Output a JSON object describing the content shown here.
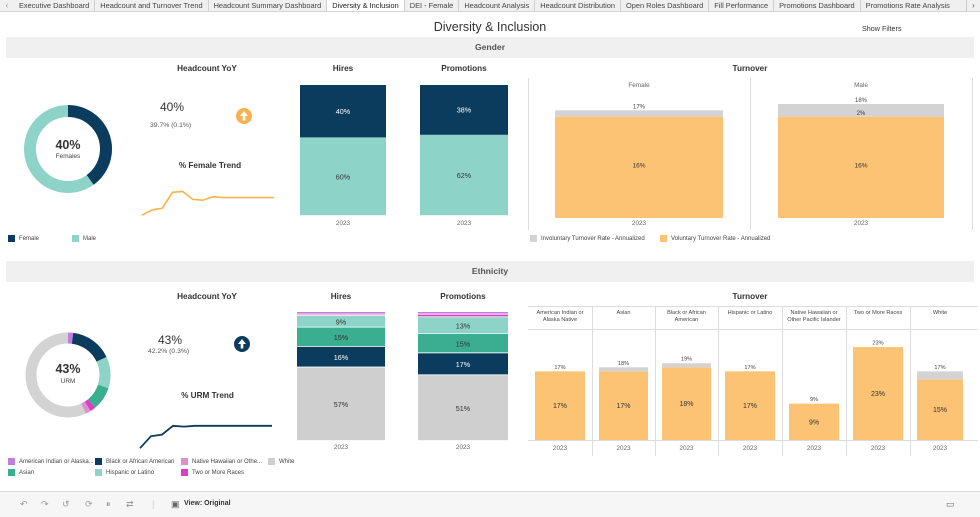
{
  "tabs": [
    "Executive Dashboard",
    "Headcount and Turnover Trend",
    "Headcount Summary Dashboard",
    "Diversity & Inclusion",
    "DEI - Female",
    "Headcount Analysis",
    "Headcount Distribution",
    "Open Roles Dashboard",
    "Fill Performance",
    "Promotions Dashboard",
    "Promotions Rate Analysis"
  ],
  "active_tab": "Diversity & Inclusion",
  "title": "Diversity & Inclusion",
  "show_filters": "Show Filters",
  "gender": {
    "section": "Gender",
    "donut_value": "40%",
    "donut_label": "Females",
    "headcount_yoy_label": "Headcount YoY",
    "yoy_value": "40%",
    "yoy_sub": "39.7%  (0.1%)",
    "trend_label": "% Female Trend",
    "hires_label": "Promotions",
    "hires_title": "Hires",
    "promotions_title": "Promotions",
    "turnover_title": "Turnover",
    "female_label": "Female",
    "male_label": "Male",
    "year": "2023",
    "legend": [
      {
        "label": "Female",
        "color": "#0b3c5d"
      },
      {
        "label": "Male",
        "color": "#8dd3c7"
      }
    ],
    "turnover_legend": [
      {
        "label": "Involuntary Turnover Rate - Annualized",
        "color": "#d3d3d3"
      },
      {
        "label": "Voluntary Turnover Rate - Annualized",
        "color": "#fbc373"
      }
    ]
  },
  "ethnicity": {
    "section": "Ethnicity",
    "donut_value": "43%",
    "donut_label": "URM",
    "headcount_yoy_label": "Headcount YoY",
    "yoy_value": "43%",
    "yoy_sub": "42.2%  (0.3%)",
    "trend_label": "% URM Trend",
    "hires_title": "Hires",
    "promotions_title": "Promotions",
    "turnover_title": "Turnover",
    "year": "2023",
    "legend": [
      {
        "label": "American Indian or Alaska...",
        "color": "#c07ee0"
      },
      {
        "label": "Black or African American",
        "color": "#0b3c5d"
      },
      {
        "label": "Native Hawaiian or Othe...",
        "color": "#e08ed0"
      },
      {
        "label": "White",
        "color": "#cfcfcf"
      },
      {
        "label": "Asian",
        "color": "#3aae8f"
      },
      {
        "label": "Hispanic or Latino",
        "color": "#8dd3c7"
      },
      {
        "label": "Two or More Races",
        "color": "#d93fc4"
      }
    ],
    "turnover_groups": [
      {
        "label1": "American Indian or",
        "label2": "Alaska Native",
        "top": "17%",
        "inner": "17%"
      },
      {
        "label1": "Asian",
        "label2": "",
        "top": "18%",
        "inner": "17%"
      },
      {
        "label1": "Black or African",
        "label2": "American",
        "top": "19%",
        "inner": "18%"
      },
      {
        "label1": "Hispanic or Latino",
        "label2": "",
        "top": "17%",
        "inner": "17%"
      },
      {
        "label1": "Native Hawaiian or",
        "label2": "Other Pacific Islander",
        "top": "9%",
        "inner": "9%"
      },
      {
        "label1": "Two or More Races",
        "label2": "",
        "top": "23%",
        "inner": "23%"
      },
      {
        "label1": "White",
        "label2": "",
        "top": "17%",
        "inner": "15%"
      }
    ]
  },
  "toolbar": {
    "view_label": "View: Original"
  },
  "chart_data": [
    {
      "type": "pie",
      "title": "Gender headcount",
      "categories": [
        "Female",
        "Male"
      ],
      "values": [
        40,
        60
      ]
    },
    {
      "type": "line",
      "title": "% Female Trend",
      "values": [
        0.2,
        0.32,
        0.36,
        0.72,
        0.74,
        0.56,
        0.54,
        0.62,
        0.6,
        0.6,
        0.6,
        0.6,
        0.6,
        0.6
      ]
    },
    {
      "type": "bar",
      "title": "Hires",
      "categories": [
        "2023"
      ],
      "series": [
        {
          "name": "Female",
          "values": [
            40
          ]
        },
        {
          "name": "Male",
          "values": [
            60
          ]
        }
      ],
      "ylim": [
        0,
        100
      ]
    },
    {
      "type": "bar",
      "title": "Promotions",
      "categories": [
        "2023"
      ],
      "series": [
        {
          "name": "Female",
          "values": [
            38
          ]
        },
        {
          "name": "Male",
          "values": [
            62
          ]
        }
      ],
      "ylim": [
        0,
        100
      ]
    },
    {
      "type": "bar",
      "title": "Turnover",
      "categories": [
        "Female",
        "Male"
      ],
      "series": [
        {
          "name": "Voluntary Turnover Rate - Annualized",
          "values": [
            16,
            16
          ]
        },
        {
          "name": "Involuntary Turnover Rate - Annualized",
          "values": [
            1,
            2
          ]
        }
      ],
      "totals": [
        "17%",
        "18%"
      ],
      "ylim": [
        0,
        18
      ]
    },
    {
      "type": "pie",
      "title": "Ethnicity headcount",
      "categories": [
        "URM",
        "Other"
      ],
      "values": [
        43,
        57
      ]
    },
    {
      "type": "line",
      "title": "% URM Trend",
      "values": [
        0.02,
        0.32,
        0.36,
        0.58,
        0.56,
        0.58,
        0.58,
        0.58,
        0.58,
        0.58,
        0.58,
        0.58,
        0.58
      ]
    },
    {
      "type": "bar",
      "title": "Hires",
      "categories": [
        "2023"
      ],
      "series": [
        {
          "name": "White",
          "values": [
            57
          ]
        },
        {
          "name": "Black or African American",
          "values": [
            16
          ]
        },
        {
          "name": "Asian",
          "values": [
            15
          ]
        },
        {
          "name": "Hispanic or Latino",
          "values": [
            9
          ]
        },
        {
          "name": "Two or More Races",
          "values": [
            1
          ]
        },
        {
          "name": "Native Hawaiian or Other Pacific Islander",
          "values": [
            1
          ]
        },
        {
          "name": "American Indian or Alaska Native",
          "values": [
            1
          ]
        }
      ],
      "ylim": [
        0,
        100
      ]
    },
    {
      "type": "bar",
      "title": "Promotions",
      "categories": [
        "2023"
      ],
      "series": [
        {
          "name": "White",
          "values": [
            51
          ]
        },
        {
          "name": "Black or African American",
          "values": [
            17
          ]
        },
        {
          "name": "Asian",
          "values": [
            15
          ]
        },
        {
          "name": "Hispanic or Latino",
          "values": [
            13
          ]
        },
        {
          "name": "Two or More Races",
          "values": [
            2
          ]
        },
        {
          "name": "Native Hawaiian or Other Pacific Islander",
          "values": [
            1
          ]
        },
        {
          "name": "American Indian or Alaska Native",
          "values": [
            1
          ]
        }
      ],
      "ylim": [
        0,
        100
      ]
    },
    {
      "type": "bar",
      "title": "Turnover",
      "categories": [
        "American Indian or Alaska Native",
        "Asian",
        "Black or African American",
        "Hispanic or Latino",
        "Native Hawaiian or Other Pacific Islander",
        "Two or More Races",
        "White"
      ],
      "series": [
        {
          "name": "Voluntary Turnover Rate - Annualized",
          "values": [
            17,
            17,
            18,
            17,
            9,
            23,
            15
          ]
        },
        {
          "name": "Involuntary Turnover Rate - Annualized",
          "values": [
            0,
            1,
            1,
            0,
            0,
            0,
            2
          ]
        }
      ],
      "ylim": [
        0,
        25
      ]
    }
  ]
}
